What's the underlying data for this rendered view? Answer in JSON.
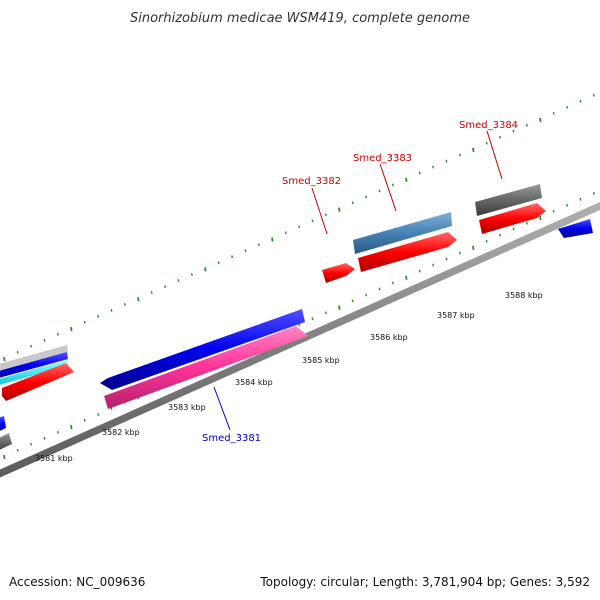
{
  "header": {
    "title": "Sinorhizobium medicae WSM419, complete genome"
  },
  "footer": {
    "accession": "Accession: NC_009636",
    "summary": "Topology: circular; Length: 3,781,904 bp; Genes: 3,592"
  },
  "scale_labels": [
    {
      "text": "3581 kbp",
      "kbp": 3581
    },
    {
      "text": "3582 kbp",
      "kbp": 3582
    },
    {
      "text": "3583 kbp",
      "kbp": 3583
    },
    {
      "text": "3584 kbp",
      "kbp": 3584
    },
    {
      "text": "3585 kbp",
      "kbp": 3585
    },
    {
      "text": "3586 kbp",
      "kbp": 3586
    },
    {
      "text": "3587 kbp",
      "kbp": 3587
    },
    {
      "text": "3588 kbp",
      "kbp": 3588
    }
  ],
  "gene_labels": [
    {
      "text": "Smed_3381",
      "color": "#0000cc"
    },
    {
      "text": "Smed_3382",
      "color": "#cc0000"
    },
    {
      "text": "Smed_3383",
      "color": "#cc0000"
    },
    {
      "text": "Smed_3384",
      "color": "#cc0000"
    }
  ],
  "colors": {
    "backbone": "#8a8a8a",
    "tick": "#2e8b2e",
    "cds": "#ff0000",
    "gene_forward": "#0000ee",
    "gene_other": "#ff3399",
    "gene_grey": "#666666",
    "gene_steel": "#4682b4",
    "cyan": "#00e5ee"
  }
}
